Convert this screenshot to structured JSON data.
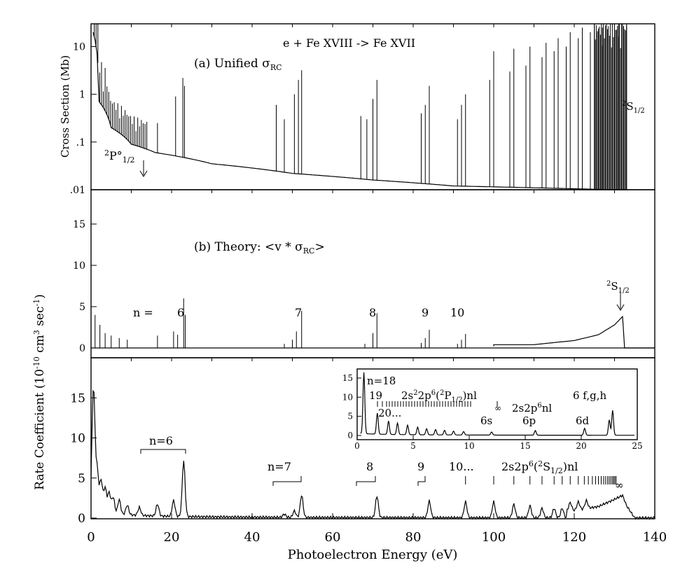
{
  "chart_data": [
    {
      "panel": "a",
      "type": "line",
      "title": "e + Fe XVIII -> Fe XVII",
      "label": "(a) Unified σ_RC",
      "ylabel": "Cross Section (Mb)",
      "yscale": "log",
      "ylim": [
        0.01,
        30
      ],
      "xlim": [
        0,
        140
      ],
      "yticks": [
        "10",
        "1",
        ".1",
        ".01"
      ],
      "annotations": [
        "2P°1/2",
        "2S1/2"
      ],
      "background": {
        "x": [
          0.5,
          2,
          5,
          10,
          16,
          30,
          50,
          70,
          90,
          110,
          130,
          133
        ],
        "y": [
          20,
          0.7,
          0.2,
          0.09,
          0.06,
          0.035,
          0.022,
          0.016,
          0.012,
          0.011,
          0.01,
          0.01
        ]
      },
      "resonances": [
        {
          "x": 16.5,
          "y": 0.25
        },
        {
          "x": 21,
          "y": 0.9
        },
        {
          "x": 22.8,
          "y": 2.2
        },
        {
          "x": 23.2,
          "y": 1.5
        },
        {
          "x": 46,
          "y": 0.6
        },
        {
          "x": 48,
          "y": 0.3
        },
        {
          "x": 50.5,
          "y": 1.0
        },
        {
          "x": 51.5,
          "y": 2.0
        },
        {
          "x": 52.3,
          "y": 3.2
        },
        {
          "x": 67,
          "y": 0.35
        },
        {
          "x": 68.5,
          "y": 0.3
        },
        {
          "x": 70,
          "y": 0.8
        },
        {
          "x": 71,
          "y": 2.0
        },
        {
          "x": 82,
          "y": 0.4
        },
        {
          "x": 83,
          "y": 0.6
        },
        {
          "x": 84,
          "y": 1.5
        },
        {
          "x": 91,
          "y": 0.3
        },
        {
          "x": 92,
          "y": 0.6
        },
        {
          "x": 93,
          "y": 1.0
        },
        {
          "x": 99,
          "y": 2
        },
        {
          "x": 100,
          "y": 8
        },
        {
          "x": 104,
          "y": 3
        },
        {
          "x": 105,
          "y": 9
        },
        {
          "x": 108,
          "y": 4
        },
        {
          "x": 109,
          "y": 10
        },
        {
          "x": 112,
          "y": 6
        },
        {
          "x": 113,
          "y": 12
        },
        {
          "x": 115,
          "y": 8
        },
        {
          "x": 116,
          "y": 15
        },
        {
          "x": 118,
          "y": 10
        },
        {
          "x": 119,
          "y": 20
        },
        {
          "x": 121,
          "y": 15
        },
        {
          "x": 122,
          "y": 25
        },
        {
          "x": 124,
          "y": 20
        },
        {
          "x": 125,
          "y": 30
        },
        {
          "x": 127,
          "y": 25
        },
        {
          "x": 128,
          "y": 30
        },
        {
          "x": 130,
          "y": 30
        },
        {
          "x": 131,
          "y": 30
        },
        {
          "x": 132,
          "y": 30
        },
        {
          "x": 133,
          "y": 30
        }
      ]
    },
    {
      "panel": "b",
      "type": "line",
      "label": "(b) Theory: <v * σ_RC>",
      "ylim": [
        0,
        20
      ],
      "xlim": [
        0,
        140
      ],
      "yticks": [
        "0",
        "5",
        "10",
        "15"
      ],
      "series_labels": [
        "n =",
        "6",
        "7",
        "8",
        "9",
        "10"
      ],
      "annotations": [
        "2S1/2"
      ],
      "peaks": [
        {
          "x": 1,
          "y": 4
        },
        {
          "x": 2.2,
          "y": 2.8
        },
        {
          "x": 3.5,
          "y": 1.8
        },
        {
          "x": 5,
          "y": 1.5
        },
        {
          "x": 7,
          "y": 1.2
        },
        {
          "x": 9,
          "y": 1
        },
        {
          "x": 16.5,
          "y": 1.5
        },
        {
          "x": 20.5,
          "y": 2
        },
        {
          "x": 21.5,
          "y": 1.6
        },
        {
          "x": 23,
          "y": 6
        },
        {
          "x": 23.4,
          "y": 4
        },
        {
          "x": 48,
          "y": 0.5
        },
        {
          "x": 50,
          "y": 1.0
        },
        {
          "x": 51,
          "y": 2.0
        },
        {
          "x": 52.3,
          "y": 4.5
        },
        {
          "x": 68,
          "y": 0.5
        },
        {
          "x": 70,
          "y": 1.8
        },
        {
          "x": 71,
          "y": 4.2
        },
        {
          "x": 82,
          "y": 0.6
        },
        {
          "x": 83,
          "y": 1.2
        },
        {
          "x": 84,
          "y": 2.2
        },
        {
          "x": 91,
          "y": 0.5
        },
        {
          "x": 92,
          "y": 1.0
        },
        {
          "x": 93,
          "y": 1.7
        }
      ],
      "continuum": {
        "x": [
          110,
          120,
          126,
          130,
          132,
          132.5
        ],
        "y": [
          0.4,
          0.9,
          1.6,
          2.8,
          3.8,
          0
        ]
      }
    },
    {
      "panel": "c",
      "type": "line",
      "ylabel": "Rate Coefficient (10^-10 cm^3 sec^-1)",
      "xlabel": "Photoelectron Energy (eV)",
      "ylim": [
        0,
        20
      ],
      "xlim": [
        0,
        140
      ],
      "xticks": [
        0,
        20,
        40,
        60,
        80,
        100,
        120,
        140
      ],
      "yticks": [
        "0",
        "5",
        "10",
        "15"
      ],
      "group_labels": [
        "n=6",
        "n=7",
        "8",
        "9",
        "10...",
        "2s2p6(2S1/2)nl",
        "∞"
      ],
      "peaks": [
        {
          "x": 0.6,
          "y": 15
        },
        {
          "x": 1.5,
          "y": 5
        },
        {
          "x": 2.5,
          "y": 3.8
        },
        {
          "x": 3.5,
          "y": 3
        },
        {
          "x": 4.5,
          "y": 2.5
        },
        {
          "x": 5.5,
          "y": 2
        },
        {
          "x": 7,
          "y": 1.8
        },
        {
          "x": 9,
          "y": 1.2
        },
        {
          "x": 12,
          "y": 1
        },
        {
          "x": 16.5,
          "y": 1.5
        },
        {
          "x": 20.5,
          "y": 2
        },
        {
          "x": 23,
          "y": 7
        },
        {
          "x": 48,
          "y": 0.4
        },
        {
          "x": 50.5,
          "y": 0.8
        },
        {
          "x": 52.3,
          "y": 2.8
        },
        {
          "x": 71,
          "y": 2.7
        },
        {
          "x": 84,
          "y": 2.1
        },
        {
          "x": 93,
          "y": 2.0
        },
        {
          "x": 100,
          "y": 2.0
        },
        {
          "x": 105,
          "y": 1.7
        },
        {
          "x": 109,
          "y": 1.5
        },
        {
          "x": 112,
          "y": 1.2
        },
        {
          "x": 115,
          "y": 1.2
        },
        {
          "x": 117,
          "y": 1.2
        },
        {
          "x": 119,
          "y": 1.0
        },
        {
          "x": 121,
          "y": 1.0
        },
        {
          "x": 123,
          "y": 1.0
        }
      ],
      "continuum": {
        "x": [
          120,
          126,
          130,
          132,
          133,
          135
        ],
        "y": [
          0.9,
          1.4,
          2.3,
          2.8,
          1.5,
          0
        ]
      },
      "inset": {
        "xlim": [
          0,
          25
        ],
        "ylim": [
          0,
          17
        ],
        "xticks": [
          0,
          5,
          10,
          15,
          20,
          25
        ],
        "yticks": [
          "0",
          "5",
          "10",
          "15"
        ],
        "labels": [
          "n=18",
          "19",
          "2s22p6(2P1/2)nl",
          "∞",
          "20...",
          "2s2p6nl",
          "6 f,g,h",
          "6s",
          "6p",
          "6d"
        ],
        "peaks": [
          {
            "x": 0.6,
            "y": 16
          },
          {
            "x": 1.8,
            "y": 5.5
          },
          {
            "x": 2.8,
            "y": 3.5
          },
          {
            "x": 3.6,
            "y": 3.0
          },
          {
            "x": 4.5,
            "y": 2.5
          },
          {
            "x": 5.4,
            "y": 2.0
          },
          {
            "x": 6.2,
            "y": 1.6
          },
          {
            "x": 7.0,
            "y": 1.4
          },
          {
            "x": 7.8,
            "y": 1.2
          },
          {
            "x": 8.6,
            "y": 1.0
          },
          {
            "x": 9.5,
            "y": 0.9
          },
          {
            "x": 12.0,
            "y": 0.8
          },
          {
            "x": 15.9,
            "y": 1.2
          },
          {
            "x": 20.3,
            "y": 1.8
          },
          {
            "x": 22.5,
            "y": 4.0
          },
          {
            "x": 22.8,
            "y": 6.5
          }
        ]
      }
    }
  ]
}
